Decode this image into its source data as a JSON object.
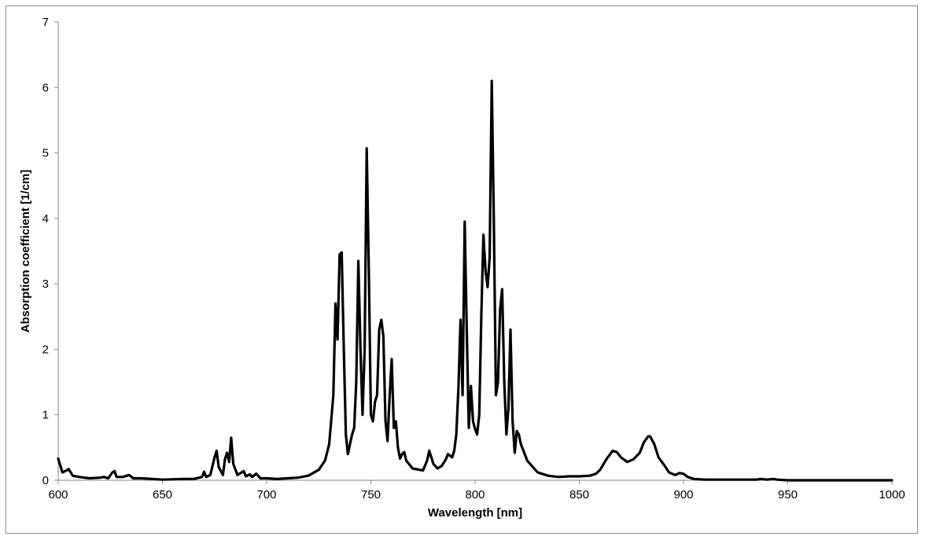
{
  "chart_data": {
    "type": "line",
    "title": "",
    "xlabel": "Wavelength [nm]",
    "ylabel": "Absorption coefficient [1/cm]",
    "xlim": [
      600,
      1000
    ],
    "ylim": [
      0,
      7
    ],
    "x_ticks": [
      600,
      650,
      700,
      750,
      800,
      850,
      900,
      950,
      1000
    ],
    "y_ticks": [
      0,
      1,
      2,
      3,
      4,
      5,
      6,
      7
    ],
    "grid": false,
    "legend": "none",
    "series": [
      {
        "color": "#000000",
        "points": [
          [
            600,
            0.33
          ],
          [
            602,
            0.12
          ],
          [
            604,
            0.15
          ],
          [
            605,
            0.17
          ],
          [
            607,
            0.07
          ],
          [
            610,
            0.05
          ],
          [
            615,
            0.03
          ],
          [
            620,
            0.04
          ],
          [
            622,
            0.05
          ],
          [
            624,
            0.03
          ],
          [
            626,
            0.12
          ],
          [
            627,
            0.14
          ],
          [
            628,
            0.05
          ],
          [
            631,
            0.05
          ],
          [
            634,
            0.08
          ],
          [
            636,
            0.03
          ],
          [
            640,
            0.03
          ],
          [
            645,
            0.02
          ],
          [
            650,
            0.01
          ],
          [
            660,
            0.02
          ],
          [
            665,
            0.02
          ],
          [
            669,
            0.05
          ],
          [
            670,
            0.13
          ],
          [
            671,
            0.05
          ],
          [
            673,
            0.08
          ],
          [
            675,
            0.35
          ],
          [
            676,
            0.45
          ],
          [
            677,
            0.2
          ],
          [
            679,
            0.08
          ],
          [
            680,
            0.32
          ],
          [
            681,
            0.42
          ],
          [
            682,
            0.28
          ],
          [
            683,
            0.65
          ],
          [
            684,
            0.25
          ],
          [
            686,
            0.08
          ],
          [
            688,
            0.12
          ],
          [
            689,
            0.14
          ],
          [
            690,
            0.06
          ],
          [
            692,
            0.09
          ],
          [
            693,
            0.05
          ],
          [
            695,
            0.1
          ],
          [
            697,
            0.03
          ],
          [
            700,
            0.03
          ],
          [
            705,
            0.02
          ],
          [
            710,
            0.03
          ],
          [
            715,
            0.04
          ],
          [
            720,
            0.07
          ],
          [
            725,
            0.16
          ],
          [
            728,
            0.3
          ],
          [
            730,
            0.55
          ],
          [
            732,
            1.3
          ],
          [
            733,
            2.7
          ],
          [
            734,
            2.15
          ],
          [
            735,
            3.45
          ],
          [
            736,
            3.48
          ],
          [
            737,
            2.0
          ],
          [
            738,
            0.7
          ],
          [
            739,
            0.4
          ],
          [
            741,
            0.7
          ],
          [
            742,
            0.8
          ],
          [
            743,
            1.5
          ],
          [
            744,
            3.35
          ],
          [
            745,
            2.0
          ],
          [
            746,
            1.0
          ],
          [
            747,
            2.0
          ],
          [
            748,
            5.07
          ],
          [
            749,
            3.2
          ],
          [
            750,
            1.0
          ],
          [
            751,
            0.9
          ],
          [
            752,
            1.2
          ],
          [
            753,
            1.3
          ],
          [
            754,
            2.3
          ],
          [
            755,
            2.45
          ],
          [
            756,
            2.2
          ],
          [
            757,
            0.9
          ],
          [
            758,
            0.6
          ],
          [
            759,
            1.3
          ],
          [
            760,
            1.85
          ],
          [
            761,
            0.8
          ],
          [
            762,
            0.9
          ],
          [
            763,
            0.5
          ],
          [
            764,
            0.33
          ],
          [
            765,
            0.4
          ],
          [
            766,
            0.43
          ],
          [
            767,
            0.3
          ],
          [
            770,
            0.18
          ],
          [
            775,
            0.15
          ],
          [
            777,
            0.3
          ],
          [
            778,
            0.45
          ],
          [
            779,
            0.35
          ],
          [
            780,
            0.25
          ],
          [
            782,
            0.18
          ],
          [
            784,
            0.22
          ],
          [
            786,
            0.32
          ],
          [
            787,
            0.4
          ],
          [
            789,
            0.35
          ],
          [
            790,
            0.45
          ],
          [
            791,
            0.7
          ],
          [
            792,
            1.4
          ],
          [
            793,
            2.45
          ],
          [
            794,
            1.3
          ],
          [
            795,
            3.95
          ],
          [
            796,
            2.3
          ],
          [
            797,
            0.8
          ],
          [
            798,
            1.44
          ],
          [
            799,
            0.9
          ],
          [
            800,
            0.78
          ],
          [
            801,
            0.7
          ],
          [
            802,
            1.0
          ],
          [
            803,
            2.5
          ],
          [
            804,
            3.75
          ],
          [
            805,
            3.2
          ],
          [
            806,
            2.95
          ],
          [
            807,
            3.4
          ],
          [
            808,
            6.1
          ],
          [
            809,
            4.0
          ],
          [
            810,
            1.3
          ],
          [
            811,
            1.5
          ],
          [
            812,
            2.6
          ],
          [
            813,
            2.92
          ],
          [
            814,
            1.5
          ],
          [
            815,
            0.7
          ],
          [
            816,
            1.1
          ],
          [
            817,
            2.3
          ],
          [
            818,
            0.9
          ],
          [
            819,
            0.42
          ],
          [
            820,
            0.75
          ],
          [
            821,
            0.7
          ],
          [
            822,
            0.55
          ],
          [
            825,
            0.3
          ],
          [
            830,
            0.12
          ],
          [
            835,
            0.07
          ],
          [
            840,
            0.05
          ],
          [
            845,
            0.06
          ],
          [
            850,
            0.06
          ],
          [
            855,
            0.07
          ],
          [
            858,
            0.1
          ],
          [
            860,
            0.16
          ],
          [
            863,
            0.32
          ],
          [
            866,
            0.45
          ],
          [
            868,
            0.43
          ],
          [
            870,
            0.35
          ],
          [
            873,
            0.28
          ],
          [
            876,
            0.32
          ],
          [
            879,
            0.42
          ],
          [
            881,
            0.58
          ],
          [
            883,
            0.67
          ],
          [
            884,
            0.67
          ],
          [
            886,
            0.55
          ],
          [
            888,
            0.35
          ],
          [
            891,
            0.22
          ],
          [
            893,
            0.12
          ],
          [
            896,
            0.08
          ],
          [
            898,
            0.11
          ],
          [
            900,
            0.1
          ],
          [
            902,
            0.05
          ],
          [
            905,
            0.02
          ],
          [
            910,
            0.01
          ],
          [
            920,
            0.01
          ],
          [
            930,
            0.01
          ],
          [
            935,
            0.01
          ],
          [
            937,
            0.02
          ],
          [
            940,
            0.01
          ],
          [
            943,
            0.02
          ],
          [
            945,
            0.01
          ],
          [
            950,
            0.0
          ],
          [
            960,
            0.0
          ],
          [
            980,
            0.0
          ],
          [
            1000,
            0.0
          ]
        ]
      }
    ]
  }
}
